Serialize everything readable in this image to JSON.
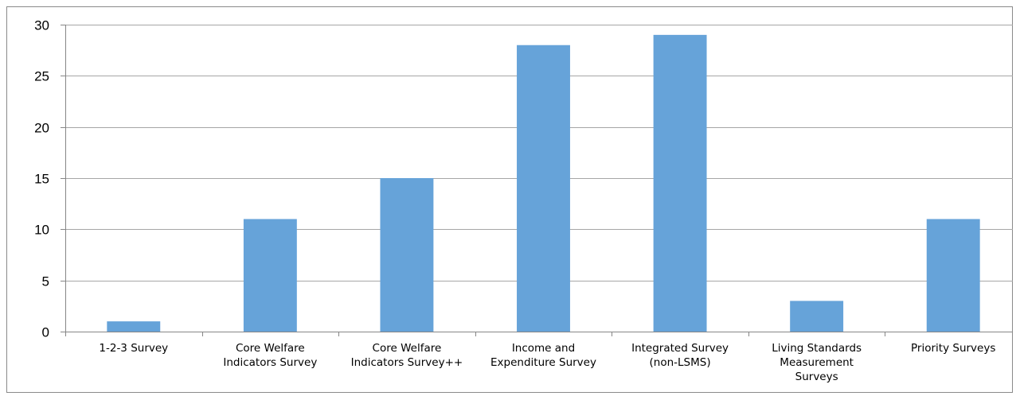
{
  "chart_data": {
    "type": "bar",
    "title": "",
    "xlabel": "",
    "ylabel": "",
    "categories": [
      [
        "1-2-3 Survey"
      ],
      [
        "Core Welfare",
        "Indicators Survey"
      ],
      [
        "Core Welfare",
        "Indicators Survey++"
      ],
      [
        "Income and",
        "Expenditure Survey"
      ],
      [
        "Integrated Survey",
        "(non-LSMS)"
      ],
      [
        "Living Standards",
        "Measurement",
        "Surveys"
      ],
      [
        "Priority Surveys"
      ]
    ],
    "values": [
      1,
      11,
      15,
      28,
      29,
      3,
      11
    ],
    "ylim": [
      0,
      30
    ],
    "yticks": [
      0,
      5,
      10,
      15,
      20,
      25,
      30
    ],
    "grid": true,
    "legend": "none",
    "bar_color": "#66a3d9",
    "grid_color": "#a6a6a6",
    "axis_color": "#868686"
  }
}
